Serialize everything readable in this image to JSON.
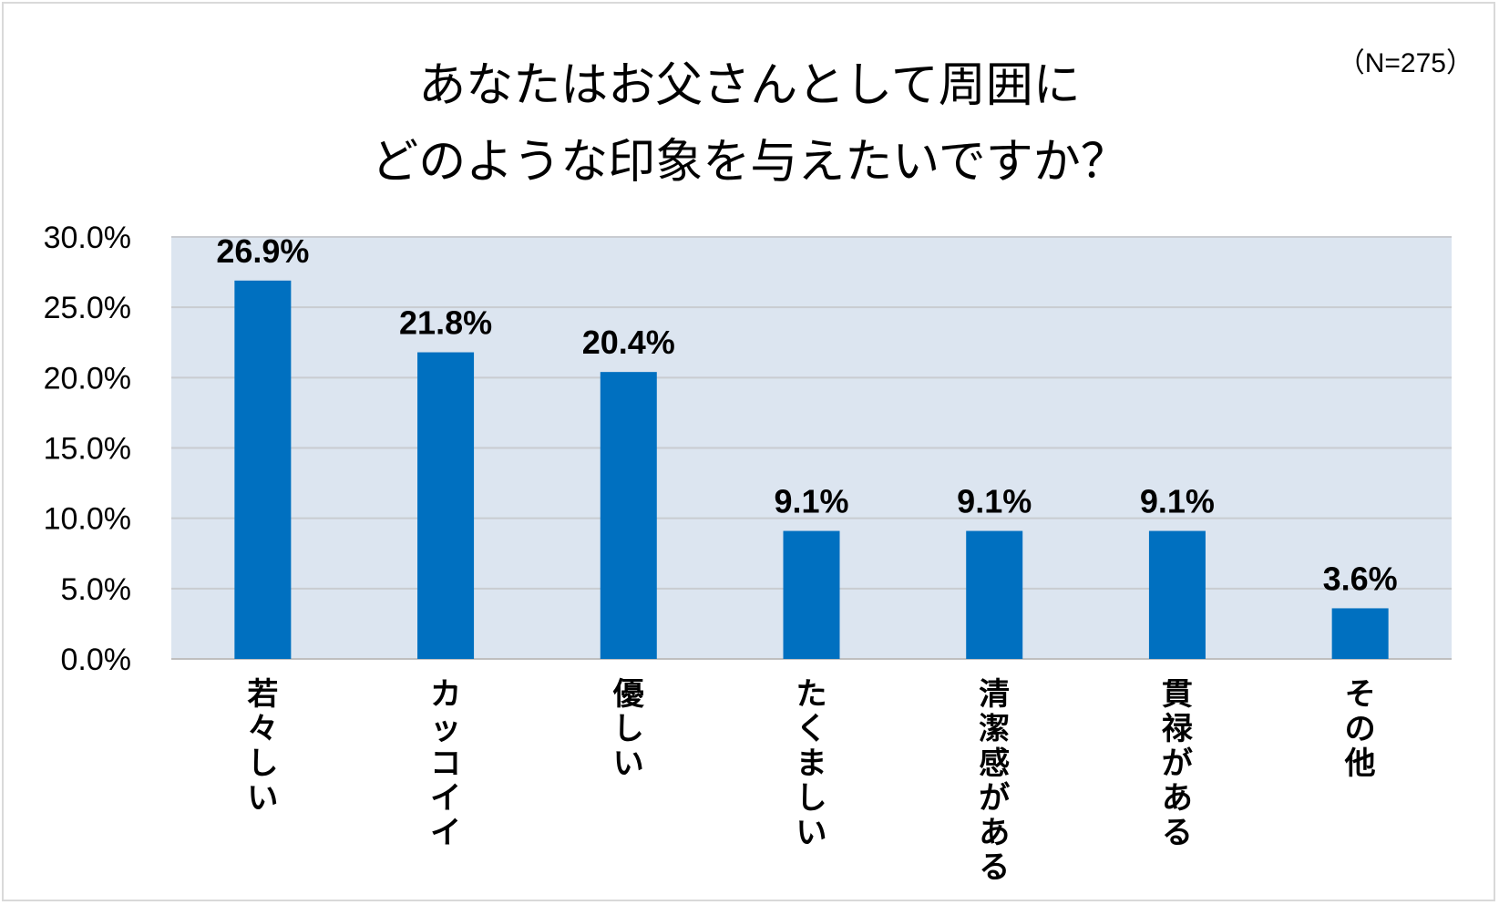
{
  "sample_note": "（N=275）",
  "title_lines": [
    "あなたはお父さんとして周囲に",
    "どのような印象を与えたいですか？"
  ],
  "colors": {
    "bar": "#0070c0",
    "plot_bg": "#dce5f0",
    "grid": "#c9ccd1",
    "frame": "#d9d9d9"
  },
  "chart_data": {
    "type": "bar",
    "title": "あなたはお父さんとして周囲に どのような印象を与えたいですか？",
    "categories": [
      "若々しい",
      "カッコイイ",
      "優しい",
      "たくましい",
      "清潔感がある",
      "貫禄がある",
      "その他"
    ],
    "values": [
      26.9,
      21.8,
      20.4,
      9.1,
      9.1,
      9.1,
      3.6
    ],
    "data_labels": [
      "26.9%",
      "21.8%",
      "20.4%",
      "9.1%",
      "9.1%",
      "9.1%",
      "3.6%"
    ],
    "ylim": [
      0,
      30
    ],
    "yticks": [
      0,
      5,
      10,
      15,
      20,
      25,
      30
    ],
    "ytick_labels": [
      "0.0%",
      "5.0%",
      "10.0%",
      "15.0%",
      "20.0%",
      "25.0%",
      "30.0%"
    ],
    "xlabel": "",
    "ylabel": "",
    "grid": true,
    "legend": "none"
  }
}
